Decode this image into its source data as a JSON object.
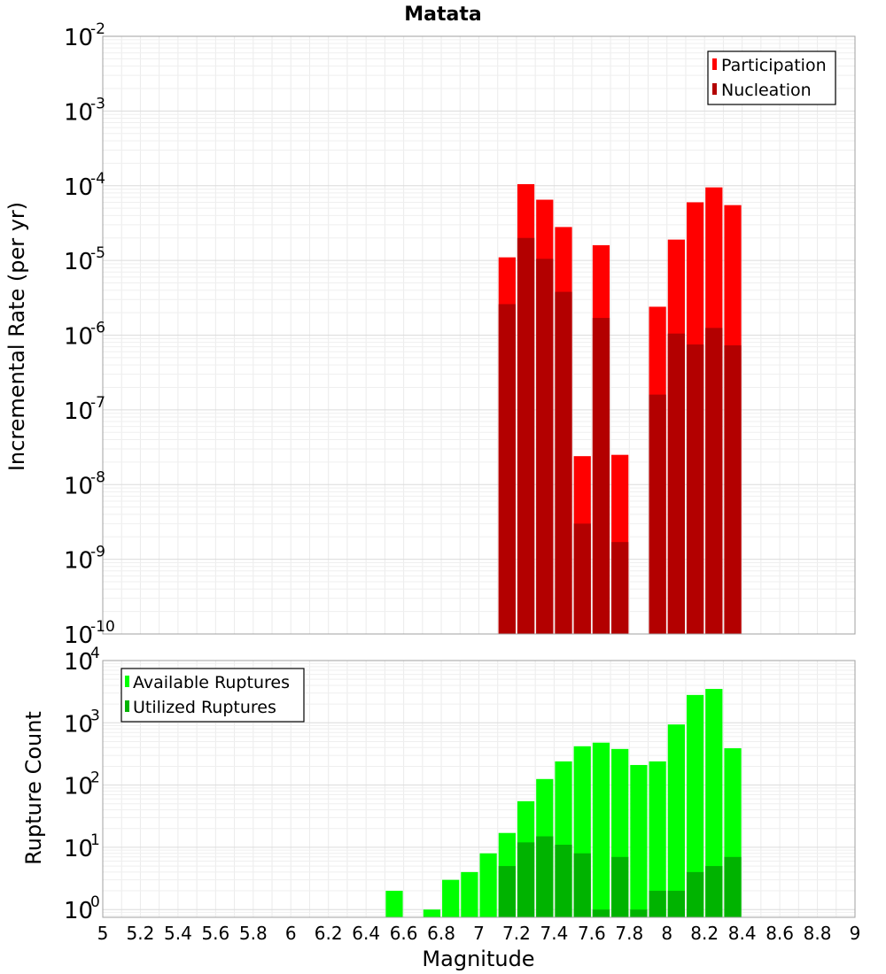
{
  "chart_data": [
    {
      "type": "bar",
      "title": "Matata",
      "ylabel": "Incremental Rate (per yr)",
      "yscale": "log",
      "ylim": [
        1e-10,
        0.01
      ],
      "xlim": [
        5,
        9
      ],
      "grid": true,
      "legend_position": "top-right",
      "y_tick_exponents": [
        "-10",
        "-9",
        "-8",
        "-7",
        "-6",
        "-5",
        "-4",
        "-3",
        "-2"
      ],
      "series": [
        {
          "name": "Participation",
          "color": "#ff0000",
          "points": [
            [
              7.15,
              1.1e-05
            ],
            [
              7.25,
              0.000105
            ],
            [
              7.35,
              6.5e-05
            ],
            [
              7.45,
              2.8e-05
            ],
            [
              7.55,
              2.4e-08
            ],
            [
              7.65,
              1.6e-05
            ],
            [
              7.75,
              2.5e-08
            ],
            [
              7.95,
              2.4e-06
            ],
            [
              8.05,
              1.9e-05
            ],
            [
              8.15,
              6e-05
            ],
            [
              8.25,
              9.5e-05
            ],
            [
              8.35,
              5.5e-05
            ]
          ]
        },
        {
          "name": "Nucleation",
          "color": "#b30000",
          "points": [
            [
              7.15,
              2.6e-06
            ],
            [
              7.25,
              2e-05
            ],
            [
              7.35,
              1.05e-05
            ],
            [
              7.45,
              3.8e-06
            ],
            [
              7.55,
              3e-09
            ],
            [
              7.65,
              1.7e-06
            ],
            [
              7.75,
              1.7e-09
            ],
            [
              7.95,
              1.6e-07
            ],
            [
              8.05,
              1.05e-06
            ],
            [
              8.15,
              7.5e-07
            ],
            [
              8.25,
              1.25e-06
            ],
            [
              8.35,
              7.3e-07
            ]
          ]
        }
      ]
    },
    {
      "type": "bar",
      "xlabel": "Magnitude",
      "ylabel": "Rupture Count",
      "yscale": "log",
      "ylim": [
        0.75,
        10000
      ],
      "xlim": [
        5,
        9
      ],
      "grid": true,
      "legend_position": "top-left",
      "x_tick_labels": [
        "5",
        "5.2",
        "5.4",
        "5.6",
        "5.8",
        "6",
        "6.2",
        "6.4",
        "6.6",
        "6.8",
        "7",
        "7.2",
        "7.4",
        "7.6",
        "7.8",
        "8",
        "8.2",
        "8.4",
        "8.6",
        "8.8",
        "9"
      ],
      "y_tick_exponents": [
        "0",
        "1",
        "2",
        "3",
        "4"
      ],
      "series": [
        {
          "name": "Available Ruptures",
          "color": "#00ff00",
          "points": [
            [
              6.55,
              2
            ],
            [
              6.75,
              1
            ],
            [
              6.85,
              3
            ],
            [
              6.95,
              4
            ],
            [
              7.05,
              8
            ],
            [
              7.15,
              17
            ],
            [
              7.25,
              55
            ],
            [
              7.35,
              125
            ],
            [
              7.45,
              240
            ],
            [
              7.55,
              420
            ],
            [
              7.65,
              480
            ],
            [
              7.75,
              380
            ],
            [
              7.85,
              210
            ],
            [
              7.95,
              240
            ],
            [
              8.05,
              940
            ],
            [
              8.15,
              2800
            ],
            [
              8.25,
              3500
            ],
            [
              8.35,
              390
            ]
          ]
        },
        {
          "name": "Utilized Ruptures",
          "color": "#00b300",
          "points": [
            [
              7.15,
              5
            ],
            [
              7.25,
              12
            ],
            [
              7.35,
              15
            ],
            [
              7.45,
              11
            ],
            [
              7.55,
              8
            ],
            [
              7.65,
              1
            ],
            [
              7.75,
              7
            ],
            [
              7.85,
              1
            ],
            [
              7.95,
              2
            ],
            [
              8.05,
              2
            ],
            [
              8.15,
              4
            ],
            [
              8.25,
              5
            ],
            [
              8.35,
              7
            ]
          ]
        }
      ]
    }
  ]
}
